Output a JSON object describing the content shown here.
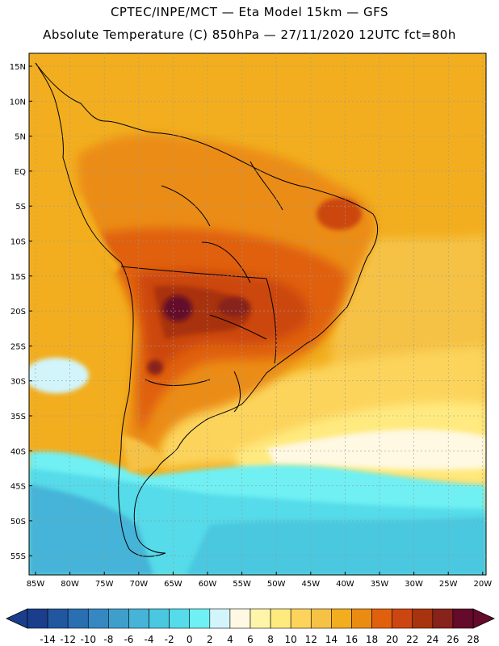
{
  "header": {
    "line1": "CPTEC/INPE/MCT —   Eta Model 15km — GFS",
    "line2": "Absolute Temperature (C) 850hPa — 27/11/2020 12UTC fct=80h"
  },
  "map": {
    "lat_labels": [
      "15N",
      "10N",
      "5N",
      "EQ",
      "5S",
      "10S",
      "15S",
      "20S",
      "25S",
      "30S",
      "35S",
      "40S",
      "45S",
      "50S",
      "55S"
    ],
    "lon_labels": [
      "85W",
      "80W",
      "75W",
      "70W",
      "65W",
      "60W",
      "55W",
      "50W",
      "45W",
      "40W",
      "35W",
      "30W",
      "25W",
      "20W"
    ],
    "region": "South America",
    "variable": "Temperature at 850 hPa"
  },
  "colorbar": {
    "labels": [
      "-14",
      "-12",
      "-10",
      "-8",
      "-6",
      "-4",
      "-2",
      "0",
      "2",
      "4",
      "6",
      "8",
      "10",
      "12",
      "14",
      "16",
      "18",
      "20",
      "22",
      "24",
      "26",
      "28"
    ],
    "colors": [
      "#1a3e8c",
      "#21579f",
      "#2a6fb2",
      "#3588c2",
      "#3f9fcc",
      "#45b4d8",
      "#4ac8e0",
      "#55dbe9",
      "#6ff0f3",
      "#d2f5fb",
      "#fff8e2",
      "#fff5a8",
      "#ffea80",
      "#fcd45c",
      "#f6c245",
      "#f2ae1e",
      "#eb8c12",
      "#e0600e",
      "#cc4611",
      "#a8330f",
      "#87231a",
      "#640a2a"
    ]
  },
  "colors": {
    "ocean_warm": "#f2ae1e",
    "land_hot": "#cc4611",
    "core_hot": "#87231a",
    "cold_water": "#3fd6ea",
    "coastline": "#000000"
  }
}
